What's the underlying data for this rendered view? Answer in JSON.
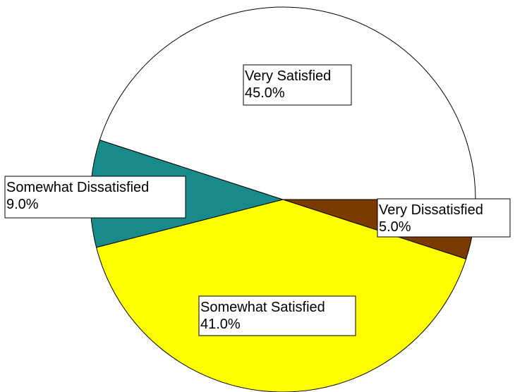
{
  "chart_data": {
    "type": "pie",
    "title": "",
    "start_angle_deg": 0,
    "direction": "clockwise",
    "slices": [
      {
        "label": "Very Dissatisfied",
        "value": 5.0,
        "percent_text": "5.0%",
        "color": "#7a3a00"
      },
      {
        "label": "Somewhat Satisfied",
        "value": 41.0,
        "percent_text": "41.0%",
        "color": "#ffff00"
      },
      {
        "label": "Somewhat Dissatisfied",
        "value": 9.0,
        "percent_text": "9.0%",
        "color": "#198a8a"
      },
      {
        "label": "Very Satisfied",
        "value": 45.0,
        "percent_text": "45.0%",
        "color": "#ffffff"
      }
    ]
  }
}
